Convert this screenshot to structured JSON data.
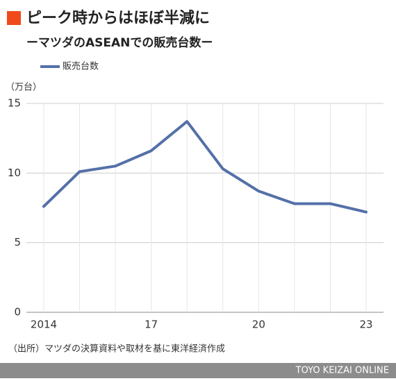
{
  "chart_data": {
    "type": "line",
    "title": "ピーク時からはほぼ半減に",
    "subtitle": "ーマツダのASEANでの販売台数ー",
    "y_unit": "（万台）",
    "categories": [
      "2014",
      null,
      null,
      "17",
      null,
      null,
      "20",
      null,
      null,
      "23"
    ],
    "series": [
      {
        "name": "販売台数",
        "color": "#5470a8",
        "values": [
          7.6,
          10.1,
          10.5,
          11.6,
          13.7,
          10.3,
          8.7,
          7.8,
          7.8,
          7.2
        ]
      }
    ],
    "ylim": [
      0,
      15
    ],
    "yticks": [
      0,
      5,
      10,
      15
    ],
    "grid": true,
    "source": "（出所）マツダの決算資料や取材を基に東洋経済作成",
    "footer": "TOYO KEIZAI ONLINE"
  }
}
